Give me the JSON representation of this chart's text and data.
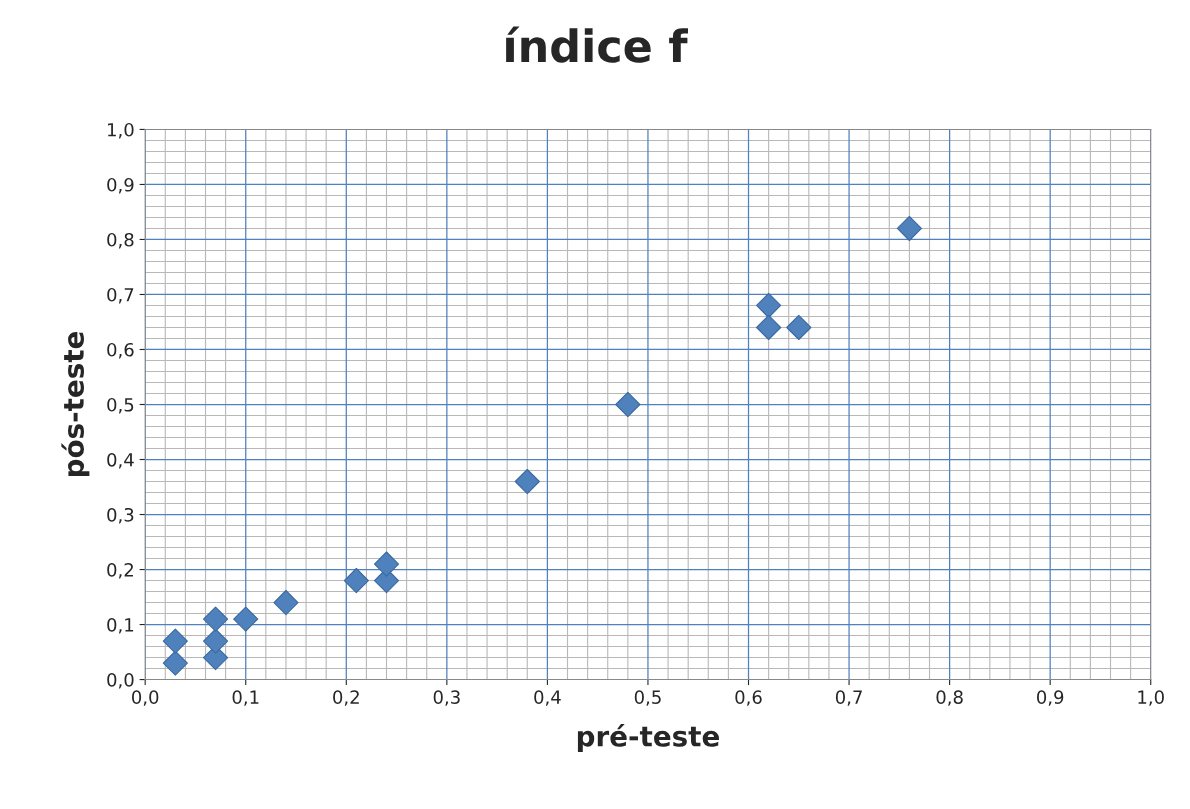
{
  "chart_data": {
    "type": "scatter",
    "title": "índice f",
    "xlabel": "pré-teste",
    "ylabel": "pós-teste",
    "x": [
      0.03,
      0.03,
      0.07,
      0.07,
      0.07,
      0.1,
      0.14,
      0.21,
      0.24,
      0.24,
      0.38,
      0.48,
      0.62,
      0.62,
      0.65,
      0.76
    ],
    "series": [
      {
        "color": "#4f81bd",
        "values": [
          0.03,
          0.07,
          0.04,
          0.07,
          0.11,
          0.11,
          0.14,
          0.18,
          0.18,
          0.21,
          0.36,
          0.5,
          0.68,
          0.64,
          0.64,
          0.82
        ]
      }
    ],
    "marker": "diamond",
    "grid": true,
    "xlim": [
      0,
      1
    ],
    "ylim": [
      0,
      1
    ],
    "xticks": [
      {
        "value": 0,
        "label": "0,0"
      },
      {
        "value": 0.1,
        "label": "0,1"
      },
      {
        "value": 0.2,
        "label": "0,2"
      },
      {
        "value": 0.3,
        "label": "0,3"
      },
      {
        "value": 0.4,
        "label": "0,4"
      },
      {
        "value": 0.5,
        "label": "0,5"
      },
      {
        "value": 0.6,
        "label": "0,6"
      },
      {
        "value": 0.7,
        "label": "0,7"
      },
      {
        "value": 0.8,
        "label": "0,8"
      },
      {
        "value": 0.9,
        "label": "0,9"
      },
      {
        "value": 1,
        "label": "1,0"
      }
    ],
    "yticks": [
      {
        "value": 0,
        "label": "0,0"
      },
      {
        "value": 0.1,
        "label": "0,1"
      },
      {
        "value": 0.2,
        "label": "0,2"
      },
      {
        "value": 0.3,
        "label": "0,3"
      },
      {
        "value": 0.4,
        "label": "0,4"
      },
      {
        "value": 0.5,
        "label": "0,5"
      },
      {
        "value": 0.6,
        "label": "0,6"
      },
      {
        "value": 0.7,
        "label": "0,7"
      },
      {
        "value": 0.8,
        "label": "0,8"
      },
      {
        "value": 0.9,
        "label": "0,9"
      },
      {
        "value": 1,
        "label": "1,0"
      }
    ]
  }
}
